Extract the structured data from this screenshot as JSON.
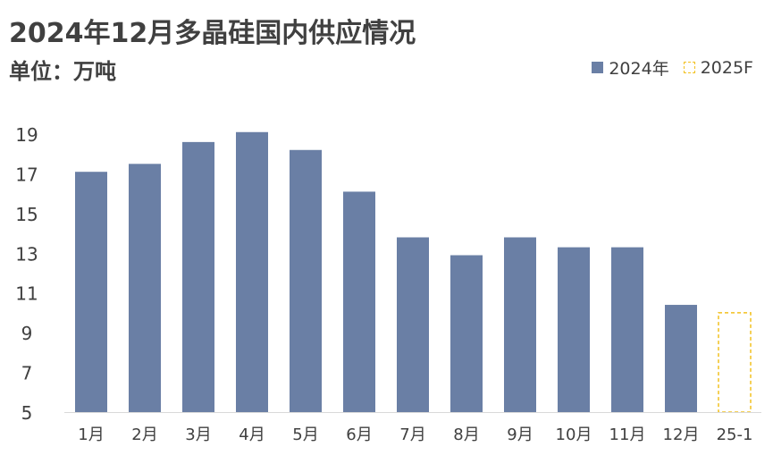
{
  "chart_data": {
    "type": "bar",
    "title": "2024年12月多晶硅国内供应情况",
    "subtitle": "单位：万吨",
    "categories": [
      "1月",
      "2月",
      "3月",
      "4月",
      "5月",
      "6月",
      "7月",
      "8月",
      "9月",
      "10月",
      "11月",
      "12月",
      "25-1"
    ],
    "series": [
      {
        "name": "2024年",
        "color": "#6a7fa5",
        "style": "solid",
        "values": [
          17.1,
          17.5,
          18.6,
          19.1,
          18.2,
          16.1,
          13.8,
          12.9,
          13.8,
          13.3,
          13.3,
          10.4,
          null
        ]
      },
      {
        "name": "2025F",
        "color": "#f2c01e",
        "style": "dashed-outline",
        "values": [
          null,
          null,
          null,
          null,
          null,
          null,
          null,
          null,
          null,
          null,
          null,
          null,
          10.0
        ]
      }
    ],
    "yticks": [
      5,
      7,
      9,
      11,
      13,
      15,
      17,
      19
    ],
    "ylim": [
      5,
      20
    ],
    "grid": false,
    "legend_position": "top-right"
  }
}
